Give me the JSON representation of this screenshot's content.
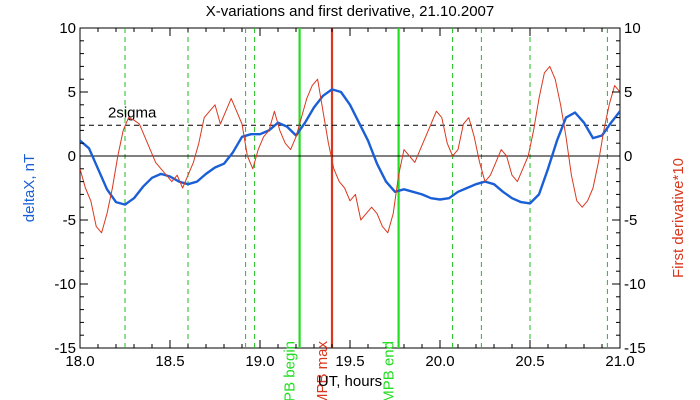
{
  "chart_data": {
    "type": "line",
    "title": "X-variations and first derivative, 21.10.2007",
    "xlabel": "UT, hours",
    "ylabel_left": "deltaX, nT",
    "ylabel_right": "First derivative*10",
    "xlim": [
      18.0,
      21.0
    ],
    "ylim": [
      -15,
      10
    ],
    "x_ticks": [
      18.0,
      18.5,
      19.0,
      19.5,
      20.0,
      20.5,
      21.0
    ],
    "x_tick_labels": [
      "18.0",
      "18.5",
      "19.0",
      "19.5",
      "20.0",
      "20.5",
      "21.0"
    ],
    "y_ticks": [
      -15,
      -10,
      -5,
      0,
      5,
      10
    ],
    "y_tick_labels": [
      "-15",
      "-10",
      "-5",
      "0",
      "5",
      "10"
    ],
    "threshold": {
      "label": "2sigma",
      "value": 2.4,
      "color": "#000000"
    },
    "zero_line": 0,
    "series": [
      {
        "name": "deltaX, nT",
        "color": "#1a5fd6",
        "x": [
          18.0,
          18.05,
          18.1,
          18.15,
          18.2,
          18.25,
          18.3,
          18.35,
          18.4,
          18.45,
          18.5,
          18.55,
          18.6,
          18.65,
          18.7,
          18.75,
          18.8,
          18.85,
          18.9,
          18.95,
          19.0,
          19.05,
          19.1,
          19.15,
          19.2,
          19.25,
          19.3,
          19.35,
          19.4,
          19.45,
          19.5,
          19.55,
          19.6,
          19.65,
          19.7,
          19.75,
          19.8,
          19.85,
          19.9,
          19.95,
          20.0,
          20.05,
          20.1,
          20.15,
          20.2,
          20.25,
          20.3,
          20.35,
          20.4,
          20.45,
          20.5,
          20.55,
          20.6,
          20.65,
          20.7,
          20.75,
          20.8,
          20.85,
          20.9,
          20.95,
          21.0
        ],
        "y": [
          1.2,
          0.6,
          -1.0,
          -2.6,
          -3.6,
          -3.8,
          -3.3,
          -2.4,
          -1.7,
          -1.4,
          -1.6,
          -2.0,
          -2.2,
          -2.0,
          -1.4,
          -0.9,
          -0.6,
          0.3,
          1.5,
          1.7,
          1.7,
          2.0,
          2.6,
          2.3,
          1.6,
          2.6,
          3.8,
          4.7,
          5.2,
          5.0,
          4.0,
          2.6,
          1.2,
          -0.6,
          -2.0,
          -2.8,
          -2.6,
          -2.8,
          -3.0,
          -3.3,
          -3.4,
          -3.3,
          -2.8,
          -2.5,
          -2.2,
          -2.0,
          -2.2,
          -2.8,
          -3.3,
          -3.6,
          -3.7,
          -3.0,
          -1.0,
          1.2,
          3.0,
          3.4,
          2.6,
          1.4,
          1.6,
          2.6,
          3.5
        ]
      },
      {
        "name": "First derivative*10",
        "color": "#d9381e",
        "x": [
          18.0,
          18.03,
          18.06,
          18.09,
          18.12,
          18.15,
          18.18,
          18.21,
          18.24,
          18.27,
          18.3,
          18.33,
          18.36,
          18.39,
          18.42,
          18.45,
          18.48,
          18.51,
          18.54,
          18.57,
          18.6,
          18.63,
          18.66,
          18.69,
          18.72,
          18.75,
          18.78,
          18.81,
          18.84,
          18.87,
          18.9,
          18.93,
          18.96,
          18.99,
          19.02,
          19.05,
          19.08,
          19.11,
          19.14,
          19.17,
          19.2,
          19.23,
          19.26,
          19.29,
          19.32,
          19.35,
          19.38,
          19.41,
          19.44,
          19.47,
          19.5,
          19.53,
          19.56,
          19.59,
          19.62,
          19.65,
          19.68,
          19.71,
          19.74,
          19.77,
          19.8,
          19.83,
          19.86,
          19.89,
          19.92,
          19.95,
          19.98,
          20.01,
          20.04,
          20.07,
          20.1,
          20.13,
          20.16,
          20.19,
          20.22,
          20.25,
          20.28,
          20.31,
          20.34,
          20.37,
          20.4,
          20.43,
          20.46,
          20.49,
          20.52,
          20.55,
          20.58,
          20.61,
          20.64,
          20.67,
          20.7,
          20.73,
          20.76,
          20.79,
          20.82,
          20.85,
          20.88,
          20.91,
          20.94,
          20.97,
          21.0
        ],
        "y": [
          -1.0,
          -2.5,
          -3.5,
          -5.5,
          -6.0,
          -4.5,
          -2.5,
          0.0,
          2.0,
          3.0,
          2.8,
          2.5,
          1.5,
          0.5,
          -0.5,
          -1.0,
          -1.5,
          -2.0,
          -1.5,
          -2.5,
          -1.5,
          -0.5,
          1.0,
          3.0,
          3.5,
          4.0,
          2.5,
          3.5,
          4.5,
          3.5,
          2.5,
          0.0,
          -1.0,
          0.5,
          1.5,
          2.0,
          3.5,
          2.0,
          1.0,
          0.5,
          1.5,
          3.0,
          4.5,
          5.5,
          6.0,
          3.5,
          1.0,
          -1.0,
          -2.0,
          -2.5,
          -3.5,
          -3.0,
          -5.0,
          -4.5,
          -4.0,
          -4.5,
          -5.5,
          -6.0,
          -4.5,
          -1.5,
          0.5,
          0.0,
          -0.5,
          0.5,
          1.5,
          2.5,
          3.5,
          3.0,
          1.0,
          0.0,
          0.5,
          2.5,
          3.0,
          1.5,
          -0.5,
          -2.0,
          -1.5,
          -0.5,
          0.5,
          0.0,
          -1.5,
          -2.0,
          -1.0,
          0.0,
          2.0,
          4.5,
          6.5,
          7.0,
          6.0,
          4.0,
          1.5,
          -1.5,
          -3.5,
          -4.0,
          -3.5,
          -2.5,
          -0.5,
          2.0,
          4.0,
          5.5,
          5.0
        ]
      }
    ],
    "vertical_markers": [
      {
        "x": 18.25,
        "style": "dashed",
        "color": "#22bb22"
      },
      {
        "x": 18.6,
        "style": "dashed",
        "color": "#22bb22"
      },
      {
        "x": 18.92,
        "style": "dashed",
        "color": "#22bb22"
      },
      {
        "x": 18.97,
        "style": "dashed",
        "color": "#22bb22"
      },
      {
        "x": 19.22,
        "style": "solid",
        "color": "#22dd22",
        "label": "MPB begin"
      },
      {
        "x": 19.4,
        "style": "solid",
        "color": "#d9381e",
        "label": "MPB max"
      },
      {
        "x": 19.77,
        "style": "solid",
        "color": "#22dd22",
        "label": "MPB end"
      },
      {
        "x": 20.07,
        "style": "dashed",
        "color": "#22bb22"
      },
      {
        "x": 20.23,
        "style": "dashed",
        "color": "#22bb22"
      },
      {
        "x": 20.5,
        "style": "dashed",
        "color": "#22bb22"
      },
      {
        "x": 20.93,
        "style": "dashed",
        "color": "#22bb22"
      }
    ],
    "colors": {
      "left_axis_label": "#1a5fd6",
      "right_axis_label": "#d9381e"
    }
  }
}
